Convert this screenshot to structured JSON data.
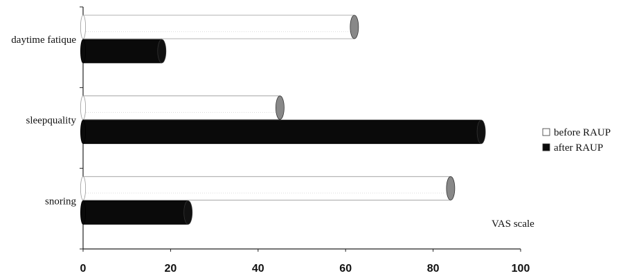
{
  "chart_data": {
    "type": "bar",
    "orientation": "horizontal",
    "style": "3d-cylinder",
    "categories": [
      "daytime fatique",
      "sleepquality",
      "snoring"
    ],
    "series": [
      {
        "name": "before RAUP",
        "values": [
          62,
          45,
          84
        ],
        "color": "#ffffff",
        "cap_color": "#888888"
      },
      {
        "name": "after RAUP",
        "values": [
          18,
          91,
          24
        ],
        "color": "#0a0a0a",
        "cap_color": "#111111"
      }
    ],
    "xticks": [
      0,
      20,
      40,
      60,
      80,
      100
    ],
    "xlim": [
      0,
      100
    ],
    "annotation": "VAS scale",
    "legend_position": "right",
    "grid": false
  }
}
